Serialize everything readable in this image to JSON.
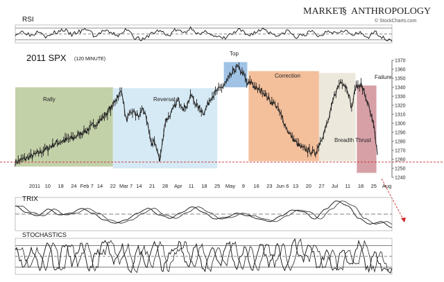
{
  "brand": {
    "part1": "MARKET",
    "part2": "ANTHROPOLOGY",
    "credit": "© StockCharts.com"
  },
  "colors": {
    "zone_green": "#b9c99a",
    "zone_blue": "#cfe6f3",
    "zone_top": "#8fb8e0",
    "zone_orange": "#f2b48a",
    "zone_beige": "#e9e5d6",
    "zone_red": "#cf8f97",
    "price": "#1c1c1c",
    "support": "#cc2222",
    "osc_line": "#222222"
  },
  "panels": {
    "rsi": "RSI",
    "trix": "TRIX",
    "stochastics": "STOCHASTICS"
  },
  "chart_data": {
    "type": "line",
    "title": "2011 SPX",
    "subtitle": "(120 MINUTE)",
    "ylim": [
      1240,
      1370
    ],
    "y_ticks": [
      1370,
      1360,
      1350,
      1340,
      1330,
      1320,
      1310,
      1300,
      1290,
      1280,
      1270,
      1260,
      1250,
      1240
    ],
    "x_ticks": [
      "2011",
      "10",
      "18",
      "24",
      "Feb 7",
      "14",
      "22",
      "Mar 7",
      "14",
      "21",
      "28",
      "Apr",
      "11",
      "18",
      "25",
      "May",
      "9",
      "16",
      "23",
      "Jun 6",
      "13",
      "20",
      "27",
      "Jul",
      "11",
      "18",
      "25",
      "Aug"
    ],
    "support_level": 1257,
    "zones": [
      {
        "label": "Rally",
        "tick_start": 0,
        "tick_end": 6,
        "top": 1340,
        "bottom": 1252
      },
      {
        "label": "Reversal",
        "tick_start": 6,
        "tick_end": 14,
        "top": 1339,
        "bottom": 1250
      },
      {
        "label": "Top",
        "tick_start": 14.5,
        "tick_end": 16.3,
        "top": 1368,
        "bottom": 1340
      },
      {
        "label": "Correction",
        "tick_start": 16.4,
        "tick_end": 21.8,
        "top": 1358,
        "bottom": 1258
      },
      {
        "label": "Breadth Thrust",
        "tick_start": 21.8,
        "tick_end": 24.6,
        "top": 1356,
        "bottom": 1258
      },
      {
        "label": "Failure",
        "tick_start": 24.7,
        "tick_end": 26.2,
        "top": 1342,
        "bottom": 1245
      }
    ],
    "series": [
      {
        "name": "SPX",
        "t": [
          -1.5,
          -0.5,
          0,
          1,
          1.5,
          2,
          3,
          3.5,
          4,
          4.5,
          5,
          5.5,
          6,
          6.3,
          6.7,
          7,
          7.5,
          8,
          8.3,
          8.7,
          9,
          9.2,
          9.6,
          10,
          10.5,
          11,
          11.5,
          12,
          12.5,
          13,
          13.5,
          14,
          14.5,
          15,
          15.5,
          16,
          16.3,
          16.6,
          17,
          17.5,
          18,
          18.5,
          19,
          19.5,
          20,
          20.5,
          21,
          21.5,
          22,
          22.5,
          23,
          23.5,
          24,
          24.3,
          24.6,
          25,
          25.5,
          26,
          26.3
        ],
        "values": [
          1257,
          1262,
          1265,
          1272,
          1277,
          1280,
          1284,
          1289,
          1292,
          1298,
          1303,
          1311,
          1320,
          1329,
          1336,
          1303,
          1313,
          1307,
          1318,
          1295,
          1275,
          1281,
          1258,
          1302,
          1312,
          1326,
          1316,
          1331,
          1318,
          1312,
          1329,
          1336,
          1342,
          1352,
          1363,
          1355,
          1343,
          1346,
          1338,
          1336,
          1326,
          1320,
          1305,
          1289,
          1279,
          1272,
          1270,
          1266,
          1284,
          1302,
          1332,
          1348,
          1338,
          1316,
          1340,
          1344,
          1324,
          1296,
          1264
        ]
      },
      {
        "name": "RSI",
        "values": [
          50,
          58,
          46,
          62,
          40,
          55,
          64,
          48,
          57,
          66,
          42,
          60,
          52,
          45,
          67,
          38,
          30,
          52,
          61,
          44,
          63,
          55,
          70,
          47,
          58,
          40,
          35,
          50,
          62,
          46,
          56,
          68,
          52,
          44,
          61,
          38,
          48,
          57,
          42,
          62,
          55,
          64,
          46,
          52,
          40,
          55,
          36,
          30
        ]
      },
      {
        "name": "TRIX",
        "values": [
          1.0,
          0.2,
          -0.2,
          0.6,
          -0.1,
          0.1,
          0.7,
          0.1,
          -0.7,
          -1.1,
          -0.7,
          0.1,
          0.7,
          -0.1,
          -0.5,
          0.2,
          0.9,
          0.2,
          -0.6,
          -0.4,
          0.1,
          -0.2,
          -0.6,
          -0.9,
          -0.2,
          0.5,
          0.3,
          -0.6,
          0.6,
          1.6,
          1.0,
          -0.5,
          -1.2,
          -0.9,
          -1.6
        ]
      },
      {
        "name": "Stochastics",
        "values": [
          80,
          20,
          70,
          20,
          90,
          10,
          85,
          30,
          80,
          15,
          60,
          90,
          30,
          80,
          10,
          70,
          20,
          90,
          15,
          60,
          85,
          25,
          80,
          10,
          75,
          30,
          90,
          20,
          70,
          15,
          85,
          30,
          75,
          10,
          90,
          40,
          80,
          20,
          60,
          10,
          70,
          20,
          85,
          15,
          55,
          15,
          10
        ]
      }
    ]
  }
}
